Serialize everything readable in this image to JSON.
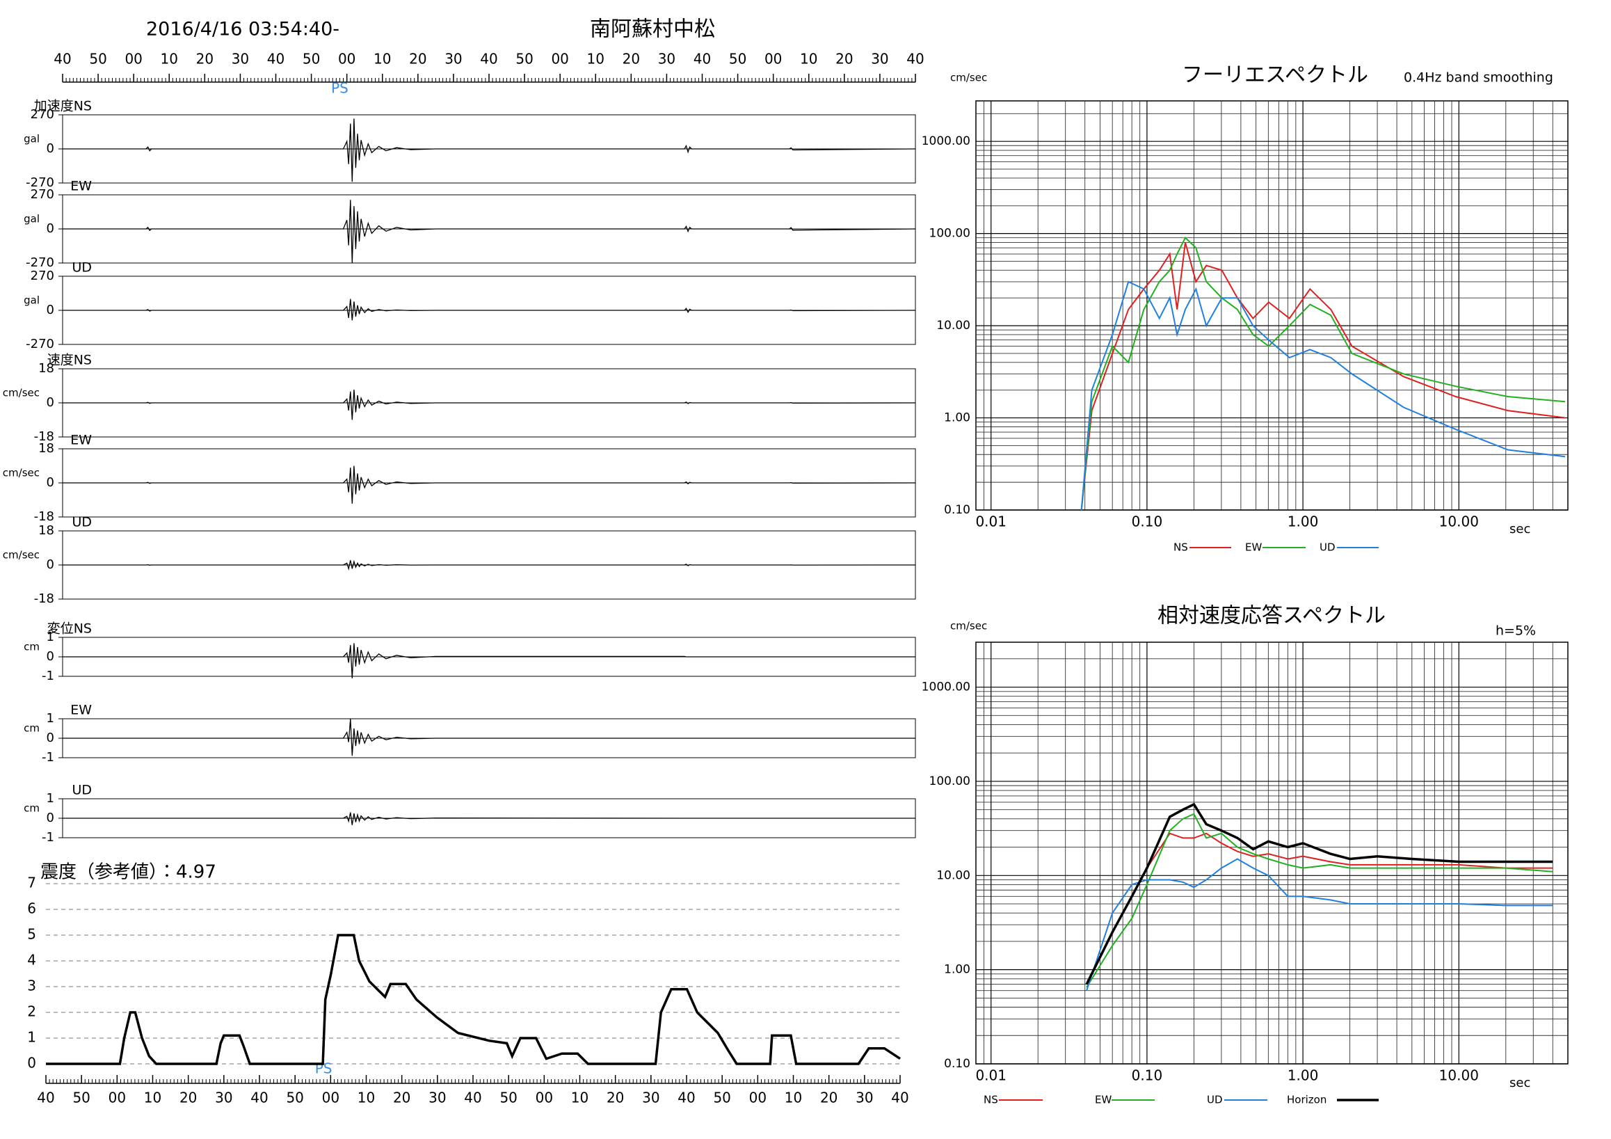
{
  "chart_data": [
    {
      "type": "waveform",
      "title": "南阿蘇村中松",
      "subtitle": "2016/4/16 03:54:40-",
      "color": "#000000",
      "xlim": [
        0,
        240
      ],
      "xticks": [
        {
          "value": 0,
          "label": "40"
        },
        {
          "value": 10,
          "label": "50"
        },
        {
          "value": 20,
          "label": "00"
        },
        {
          "value": 30,
          "label": "10"
        },
        {
          "value": 40,
          "label": "20"
        },
        {
          "value": 50,
          "label": "30"
        },
        {
          "value": 60,
          "label": "40"
        },
        {
          "value": 70,
          "label": "50"
        },
        {
          "value": 80,
          "label": "00"
        },
        {
          "value": 90,
          "label": "10"
        },
        {
          "value": 100,
          "label": "20"
        },
        {
          "value": 110,
          "label": "30"
        },
        {
          "value": 120,
          "label": "40"
        },
        {
          "value": 130,
          "label": "50"
        },
        {
          "value": 140,
          "label": "00"
        },
        {
          "value": 150,
          "label": "10"
        },
        {
          "value": 160,
          "label": "20"
        },
        {
          "value": 170,
          "label": "30"
        },
        {
          "value": 180,
          "label": "40"
        },
        {
          "value": 190,
          "label": "50"
        },
        {
          "value": 200,
          "label": "00"
        },
        {
          "value": 210,
          "label": "10"
        },
        {
          "value": 220,
          "label": "20"
        },
        {
          "value": 230,
          "label": "30"
        },
        {
          "value": 240,
          "label": "40"
        }
      ],
      "annotation": {
        "text": "PS",
        "x": 78,
        "color": "#3a8ee6"
      },
      "x": [
        0,
        23.5,
        24,
        24.5,
        25,
        79,
        80,
        80.5,
        81,
        81.5,
        82,
        82.5,
        83,
        83.5,
        84,
        85,
        86,
        87,
        89,
        91,
        94,
        98,
        105,
        175,
        175.5,
        176,
        176.5,
        177,
        204.5,
        205,
        205.5,
        240
      ],
      "panels": [
        {
          "name": "加速度NS",
          "unit": "gal",
          "ylim": [
            -270,
            270
          ],
          "yticks": [
            -270,
            0,
            270
          ],
          "values": [
            0,
            0,
            15,
            -15,
            0,
            0,
            60,
            -120,
            200,
            -260,
            240,
            -150,
            120,
            -90,
            70,
            -50,
            40,
            -30,
            20,
            -15,
            10,
            -6,
            0,
            0,
            25,
            -25,
            15,
            0,
            0,
            8,
            -8,
            0
          ]
        },
        {
          "name": "EW",
          "unit": "gal",
          "ylim": [
            -270,
            270
          ],
          "yticks": [
            -270,
            0,
            270
          ],
          "values": [
            0,
            0,
            12,
            -12,
            0,
            0,
            70,
            -130,
            230,
            -270,
            180,
            -160,
            140,
            -100,
            80,
            -60,
            45,
            -35,
            25,
            -18,
            12,
            -8,
            0,
            0,
            20,
            -20,
            12,
            0,
            0,
            10,
            -10,
            0
          ]
        },
        {
          "name": "UD",
          "unit": "gal",
          "ylim": [
            -270,
            270
          ],
          "yticks": [
            -270,
            0,
            270
          ],
          "values": [
            0,
            0,
            6,
            -6,
            0,
            0,
            30,
            -60,
            90,
            -80,
            70,
            -50,
            40,
            -30,
            25,
            -18,
            12,
            -8,
            6,
            -4,
            3,
            -2,
            0,
            0,
            15,
            -15,
            8,
            0,
            0,
            3,
            -3,
            0
          ]
        },
        {
          "name": "速度NS",
          "unit": "cm/sec",
          "ylim": [
            -18,
            18
          ],
          "yticks": [
            -18,
            0,
            18
          ],
          "values": [
            0,
            0,
            0.3,
            -0.3,
            0,
            0,
            2,
            -4,
            6,
            -9,
            7,
            -5,
            4,
            -3,
            2.5,
            -2,
            1.5,
            -1.2,
            0.9,
            -0.6,
            0.4,
            -0.3,
            0,
            0,
            0.4,
            -0.4,
            0.2,
            0,
            0,
            0.1,
            -0.1,
            0
          ]
        },
        {
          "name": "EW",
          "unit": "cm/sec",
          "ylim": [
            -18,
            18
          ],
          "yticks": [
            -18,
            0,
            18
          ],
          "values": [
            0,
            0,
            0.3,
            -0.3,
            0,
            0,
            2,
            -5,
            8,
            -11,
            9,
            -6,
            5,
            -4,
            3,
            -2.5,
            2,
            -1.5,
            1.2,
            -0.8,
            0.5,
            -0.3,
            0,
            0,
            0.5,
            -0.5,
            0.3,
            0,
            0,
            0.1,
            -0.1,
            0
          ]
        },
        {
          "name": "UD",
          "unit": "cm/sec",
          "ylim": [
            -18,
            18
          ],
          "yticks": [
            -18,
            0,
            18
          ],
          "values": [
            0,
            0,
            0.1,
            -0.1,
            0,
            0,
            1,
            -2,
            2.5,
            -2,
            1.8,
            -1.2,
            1,
            -0.8,
            0.6,
            -0.5,
            0.4,
            -0.3,
            0.2,
            -0.15,
            0.1,
            -0.05,
            0,
            0,
            0.4,
            -0.4,
            0.2,
            0,
            0,
            0.05,
            -0.05,
            0
          ]
        },
        {
          "name": "変位NS",
          "unit": "cm",
          "ylim": [
            -1,
            1
          ],
          "yticks": [
            -1,
            0,
            1
          ],
          "values": [
            0,
            0,
            0,
            0,
            0,
            0,
            0.2,
            -0.3,
            0.6,
            -1.1,
            0.7,
            -0.5,
            0.5,
            -0.4,
            0.35,
            -0.3,
            0.25,
            -0.2,
            0.15,
            -0.1,
            0.08,
            -0.05,
            0.02,
            0.02,
            0,
            0,
            0,
            0,
            0,
            0,
            0,
            0
          ]
        },
        {
          "name": "EW",
          "unit": "cm",
          "ylim": [
            -1,
            1
          ],
          "yticks": [
            -1,
            0,
            1
          ],
          "values": [
            0,
            0,
            0,
            0,
            0,
            0,
            0.3,
            -0.2,
            1.0,
            -0.9,
            0.5,
            -0.4,
            0.4,
            -0.3,
            0.3,
            -0.25,
            0.2,
            -0.15,
            0.1,
            -0.08,
            0.05,
            -0.03,
            0,
            0,
            0,
            0,
            0,
            0,
            0,
            0,
            0,
            0
          ]
        },
        {
          "name": "UD",
          "unit": "cm",
          "ylim": [
            -1,
            1
          ],
          "yticks": [
            -1,
            0,
            1
          ],
          "values": [
            0,
            0,
            0,
            0,
            0,
            0,
            0.1,
            -0.15,
            0.3,
            -0.35,
            0.25,
            -0.2,
            0.18,
            -0.15,
            0.12,
            -0.1,
            0.08,
            -0.06,
            0.05,
            -0.04,
            0.03,
            -0.02,
            0.01,
            0,
            0,
            0,
            0,
            0,
            0,
            0,
            0,
            0
          ]
        }
      ]
    },
    {
      "type": "line",
      "title": "震度（参考値）：4.97",
      "color": "#000000",
      "grid": true,
      "xlim": [
        0,
        240
      ],
      "xticks": [
        {
          "value": 0,
          "label": "40"
        },
        {
          "value": 10,
          "label": "50"
        },
        {
          "value": 20,
          "label": "00"
        },
        {
          "value": 30,
          "label": "10"
        },
        {
          "value": 40,
          "label": "20"
        },
        {
          "value": 50,
          "label": "30"
        },
        {
          "value": 60,
          "label": "40"
        },
        {
          "value": 70,
          "label": "50"
        },
        {
          "value": 80,
          "label": "00"
        },
        {
          "value": 90,
          "label": "10"
        },
        {
          "value": 100,
          "label": "20"
        },
        {
          "value": 110,
          "label": "30"
        },
        {
          "value": 120,
          "label": "40"
        },
        {
          "value": 130,
          "label": "50"
        },
        {
          "value": 140,
          "label": "00"
        },
        {
          "value": 150,
          "label": "10"
        },
        {
          "value": 160,
          "label": "20"
        },
        {
          "value": 170,
          "label": "30"
        },
        {
          "value": 180,
          "label": "40"
        },
        {
          "value": 190,
          "label": "50"
        },
        {
          "value": 200,
          "label": "00"
        },
        {
          "value": 210,
          "label": "10"
        },
        {
          "value": 220,
          "label": "20"
        },
        {
          "value": 230,
          "label": "30"
        },
        {
          "value": 240,
          "label": "40"
        }
      ],
      "ylim": [
        0,
        7
      ],
      "yticks": [
        0,
        1,
        2,
        3,
        4,
        5,
        6,
        7
      ],
      "annotation": {
        "text": "PS",
        "x": 78,
        "color": "#3a8ee6"
      },
      "x": [
        0,
        20.8,
        22,
        23.7,
        25.1,
        27,
        29,
        31,
        47.9,
        49.1,
        50,
        54.4,
        55.5,
        57.3,
        77.8,
        78.5,
        80.1,
        82.1,
        86.5,
        88,
        90.9,
        95.3,
        96.8,
        101.1,
        104.1,
        109.9,
        115.8,
        124.5,
        129.5,
        131,
        133.3,
        137.7,
        140.6,
        145,
        149.4,
        152.3,
        171.3,
        172.8,
        175.7,
        180.1,
        183,
        188.8,
        191.8,
        194.1,
        203.5,
        204,
        209.3,
        210.8,
        228.3,
        231.2,
        235.6,
        240
      ],
      "values": [
        0,
        0,
        1,
        2,
        2,
        1,
        0.3,
        0,
        0,
        0.8,
        1.1,
        1.1,
        0.7,
        0,
        0,
        2.5,
        3.5,
        5,
        5,
        4,
        3.2,
        2.6,
        3.1,
        3.1,
        2.5,
        1.8,
        1.2,
        0.9,
        0.8,
        0.3,
        1,
        1,
        0.2,
        0.4,
        0.4,
        0,
        0,
        2,
        2.9,
        2.9,
        2,
        1.2,
        0.5,
        0,
        0,
        1.1,
        1.1,
        0,
        0,
        0.6,
        0.6,
        0.2
      ]
    },
    {
      "type": "line",
      "log": true,
      "title": "フーリエスペクトル",
      "subtitle": "0.4Hz band smoothing",
      "y_label": "cm/sec",
      "x_label": "sec",
      "grid": true,
      "xlim": [
        0.008,
        50
      ],
      "xticks": [
        0.01,
        {
          "value": 0.1,
          "label": "0.10"
        },
        {
          "value": 1,
          "label": "1.00"
        },
        {
          "value": 10,
          "label": "10.00"
        }
      ],
      "ylim": [
        0.1,
        2750
      ],
      "yticks": [
        {
          "value": 0.1,
          "label": "0.10"
        },
        {
          "value": 1,
          "label": "1.00"
        },
        {
          "value": 10,
          "label": "10.00"
        },
        {
          "value": 100,
          "label": "100.00"
        },
        {
          "value": 1000,
          "label": "1000.00"
        }
      ],
      "x": [
        0.038,
        0.0443,
        0.06,
        0.076,
        0.0955,
        0.12,
        0.14,
        0.156,
        0.176,
        0.206,
        0.24,
        0.302,
        0.38,
        0.479,
        0.603,
        0.819,
        1.11,
        1.51,
        2.06,
        4.43,
        9.55,
        20.6,
        48
      ],
      "series": [
        {
          "name": "NS",
          "color": "#e02020",
          "values": [
            0.1,
            1.2,
            5,
            15,
            25,
            40,
            60,
            15,
            80,
            30,
            45,
            40,
            20,
            12,
            18,
            12,
            25,
            15,
            6,
            2.8,
            1.7,
            1.2,
            1.0
          ]
        },
        {
          "name": "EW",
          "color": "#20b020",
          "values": [
            0.1,
            1.5,
            6,
            4,
            15,
            30,
            40,
            60,
            90,
            70,
            30,
            20,
            15,
            8,
            6,
            10,
            17,
            13,
            5,
            3,
            2.2,
            1.7,
            1.5
          ]
        },
        {
          "name": "UD",
          "color": "#2080e0",
          "values": [
            0.1,
            2,
            8,
            30,
            25,
            12,
            20,
            8,
            15,
            25,
            10,
            20,
            20,
            10,
            7,
            4.5,
            5.5,
            4.5,
            3,
            1.3,
            0.75,
            0.45,
            0.38
          ]
        }
      ]
    },
    {
      "type": "line",
      "log": true,
      "title": "相対速度応答スペクトル",
      "subtitle": "h=5%",
      "y_label": "cm/sec",
      "x_label": "sec",
      "grid": true,
      "xlim": [
        0.008,
        50
      ],
      "xticks": [
        0.01,
        {
          "value": 0.1,
          "label": "0.10"
        },
        {
          "value": 1,
          "label": "1.00"
        },
        {
          "value": 10,
          "label": "10.00"
        }
      ],
      "ylim": [
        0.1,
        3000
      ],
      "yticks": [
        {
          "value": 0.1,
          "label": "0.10"
        },
        {
          "value": 1,
          "label": "1.00"
        },
        {
          "value": 10,
          "label": "10.00"
        },
        {
          "value": 100,
          "label": "100.00"
        },
        {
          "value": 1000,
          "label": "1000.00"
        }
      ],
      "x": [
        0.041,
        0.06,
        0.08,
        0.1,
        0.14,
        0.17,
        0.2,
        0.24,
        0.3,
        0.38,
        0.48,
        0.6,
        0.8,
        1.0,
        1.5,
        2,
        3,
        5,
        10,
        20,
        40
      ],
      "series": [
        {
          "name": "NS",
          "color": "#e02020",
          "values": [
            0.7,
            2.5,
            6,
            12,
            28,
            25,
            25,
            28,
            22,
            18,
            16,
            17,
            15,
            16,
            14,
            13,
            13,
            13,
            13,
            12,
            12
          ]
        },
        {
          "name": "EW",
          "color": "#20b020",
          "values": [
            0.65,
            1.8,
            3.5,
            8,
            30,
            40,
            45,
            25,
            28,
            20,
            17,
            15,
            13,
            12,
            13,
            12,
            12,
            12,
            12,
            12,
            11
          ]
        },
        {
          "name": "UD",
          "color": "#2080e0",
          "values": [
            0.6,
            4,
            8,
            9,
            9,
            8.5,
            7.5,
            9,
            12,
            15,
            12,
            10,
            6,
            6,
            5.5,
            5,
            5,
            5,
            5,
            4.8,
            4.8
          ]
        },
        {
          "name": "Horizon",
          "color": "#000000",
          "values": [
            0.7,
            2.5,
            6,
            12,
            42,
            50,
            57,
            35,
            30,
            25,
            19,
            23,
            20,
            22,
            17,
            15,
            16,
            15,
            14,
            14,
            14
          ]
        }
      ]
    }
  ]
}
